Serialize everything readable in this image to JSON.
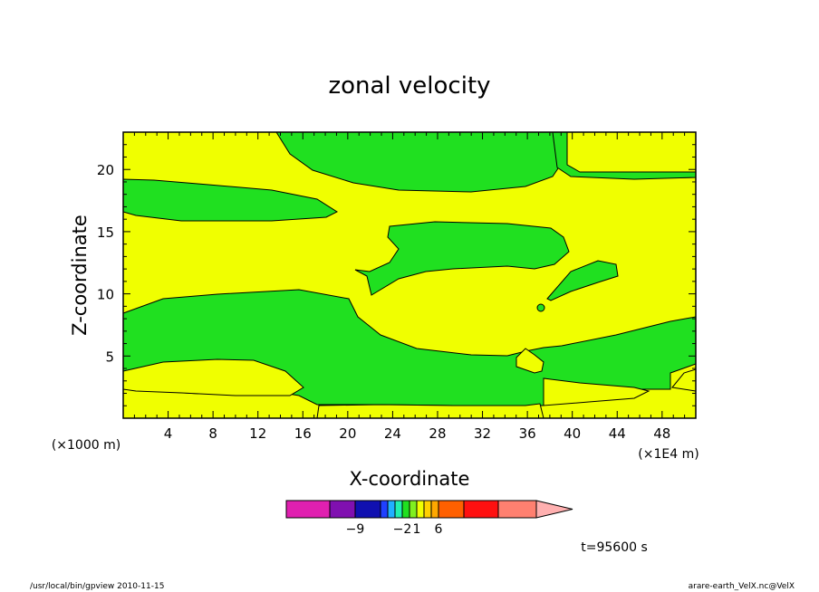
{
  "chart_data": {
    "type": "heatmap",
    "title": "zonal velocity",
    "xlabel": "X-coordinate",
    "ylabel": "Z-coordinate",
    "x_units_left": "(×1000 m)",
    "x_units_right": "(×1E4 m)",
    "xlim": [
      0,
      51
    ],
    "ylim": [
      0,
      23
    ],
    "x_ticks": [
      4,
      8,
      12,
      16,
      20,
      24,
      28,
      32,
      36,
      40,
      44,
      48
    ],
    "y_ticks": [
      5,
      10,
      15,
      20
    ],
    "time_label": "t=95600 s",
    "colorbar": {
      "colors": [
        "#e020b0",
        "#8010b0",
        "#1010b0",
        "#2040ff",
        "#20b0ff",
        "#20f0b0",
        "#20e020",
        "#80f020",
        "#f0ff00",
        "#ffd000",
        "#ffa800",
        "#ff6000",
        "#ff1010",
        "#ff8070",
        "#ffb0b0"
      ],
      "labels": [
        {
          "text": "−9",
          "at": 2
        },
        {
          "text": "−2",
          "at": 6
        },
        {
          "text": "1",
          "at": 8
        },
        {
          "text": "6",
          "at": 11
        }
      ]
    },
    "regions": [
      {
        "value_sign": "positive",
        "color": "#f0ff00"
      },
      {
        "value_sign": "negative",
        "color": "#20e020"
      }
    ]
  },
  "footer": {
    "left": "/usr/local/bin/gpview  2010-11-15",
    "right": "arare-earth_VelX.nc@VelX"
  }
}
